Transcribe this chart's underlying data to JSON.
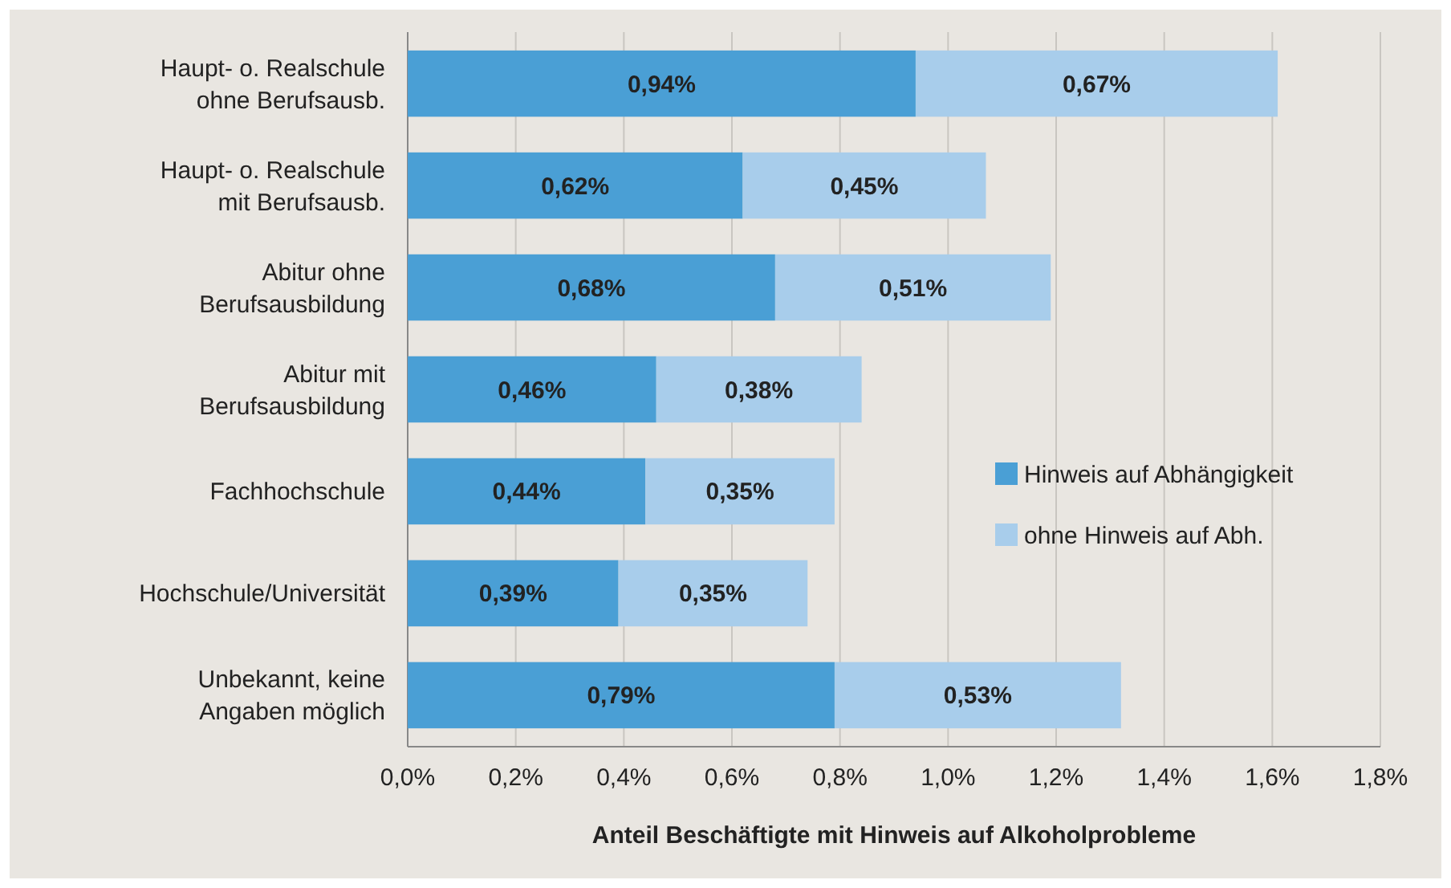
{
  "chart_data": {
    "type": "bar",
    "orientation": "horizontal",
    "stacked": true,
    "xlabel": "Anteil Beschäftigte mit Hinweis auf Alkoholprobleme",
    "categories": [
      "Haupt- o. Realschule ohne Berufsausb.",
      "Haupt- o. Realschule mit Berufsausb.",
      "Abitur ohne Berufsausbildung",
      "Abitur mit Berufsausbildung",
      "Fachhochschule",
      "Hochschule/Universität",
      "Unbekannt, keine Angaben möglich"
    ],
    "series": [
      {
        "name": "Hinweis auf Abhängigkeit",
        "color": "#4a9fd5",
        "values": [
          0.94,
          0.62,
          0.68,
          0.46,
          0.44,
          0.39,
          0.79
        ],
        "value_labels": [
          "0,94%",
          "0,62%",
          "0,68%",
          "0,46%",
          "0,44%",
          "0,39%",
          "0,79%"
        ]
      },
      {
        "name": "ohne Hinweis auf Abh.",
        "color": "#a8cdeb",
        "values": [
          0.67,
          0.45,
          0.51,
          0.38,
          0.35,
          0.35,
          0.53
        ],
        "value_labels": [
          "0,67%",
          "0,45%",
          "0,51%",
          "0,38%",
          "0,35%",
          "0,35%",
          "0,53%"
        ]
      }
    ],
    "xlim": [
      0,
      1.8
    ],
    "xticks": [
      {
        "value": 0,
        "label": "0,0%"
      },
      {
        "value": 0.2,
        "label": "0,2%"
      },
      {
        "value": 0.4,
        "label": "0,4%"
      },
      {
        "value": 0.6,
        "label": "0,6%"
      },
      {
        "value": 0.8,
        "label": "0,8%"
      },
      {
        "value": 1.0,
        "label": "1,0%"
      },
      {
        "value": 1.2,
        "label": "1,2%"
      },
      {
        "value": 1.4,
        "label": "1,4%"
      },
      {
        "value": 1.6,
        "label": "1,6%"
      },
      {
        "value": 1.8,
        "label": "1,8%"
      }
    ],
    "grid": "x",
    "legend": "right"
  }
}
